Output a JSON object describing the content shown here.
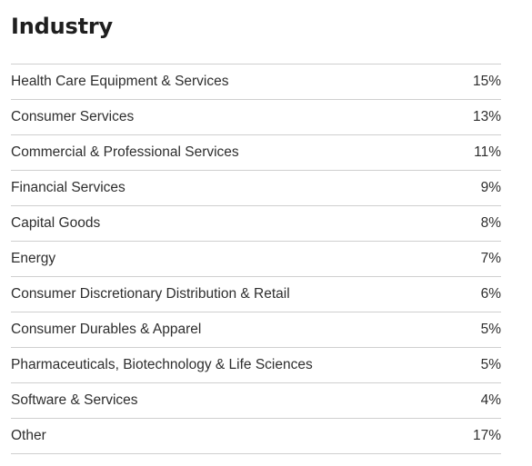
{
  "title": "Industry",
  "rows": [
    {
      "name": "Health Care Equipment & Services",
      "value": "15%"
    },
    {
      "name": "Consumer Services",
      "value": "13%"
    },
    {
      "name": "Commercial & Professional Services",
      "value": "11%"
    },
    {
      "name": "Financial Services",
      "value": "9%"
    },
    {
      "name": "Capital Goods",
      "value": "8%"
    },
    {
      "name": "Energy",
      "value": "7%"
    },
    {
      "name": "Consumer Discretionary Distribution & Retail",
      "value": "6%"
    },
    {
      "name": "Consumer Durables & Apparel",
      "value": "5%"
    },
    {
      "name": "Pharmaceuticals, Biotechnology & Life Sciences",
      "value": "5%"
    },
    {
      "name": "Software & Services",
      "value": "4%"
    },
    {
      "name": "Other",
      "value": "17%"
    }
  ]
}
